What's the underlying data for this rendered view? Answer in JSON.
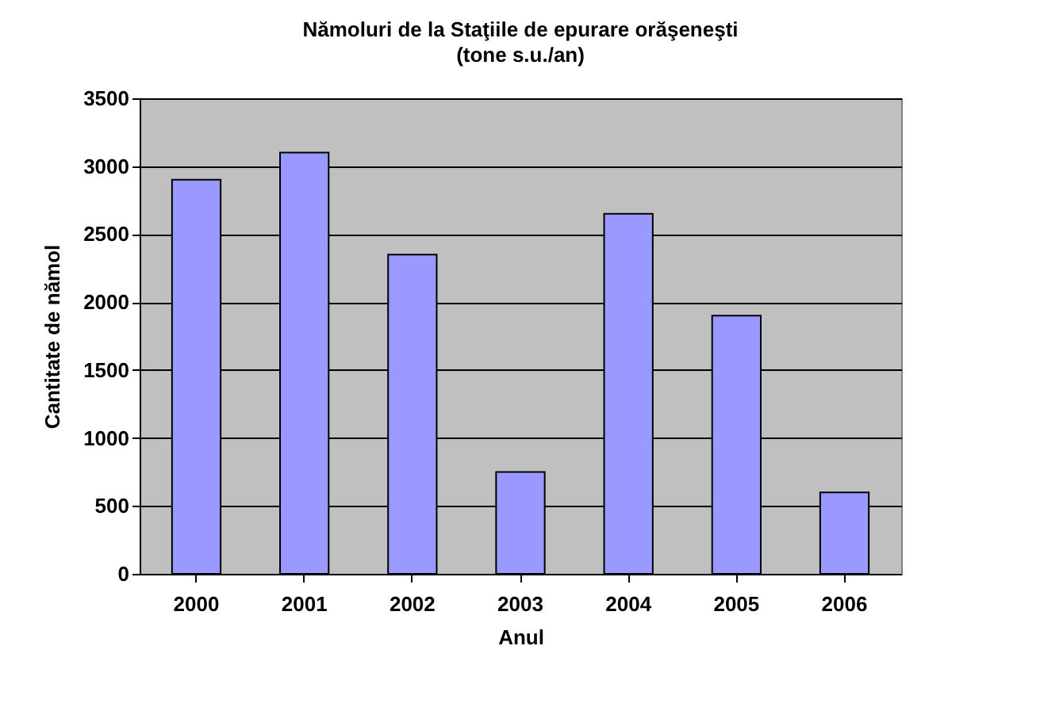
{
  "chart_data": {
    "type": "bar",
    "title": "Nămoluri de la Staţiile de epurare orăşeneşti",
    "subtitle": "(tone s.u./an)",
    "xlabel": "Anul",
    "ylabel": "Cantitate de nămol",
    "categories": [
      "2000",
      "2001",
      "2002",
      "2003",
      "2004",
      "2005",
      "2006"
    ],
    "values": [
      2900,
      3100,
      2350,
      750,
      2650,
      1900,
      600
    ],
    "color": "#9999ff",
    "ylim": [
      0,
      3500
    ],
    "yticks": [
      0,
      500,
      1000,
      1500,
      2000,
      2500,
      3000,
      3500
    ],
    "grid": "y"
  }
}
